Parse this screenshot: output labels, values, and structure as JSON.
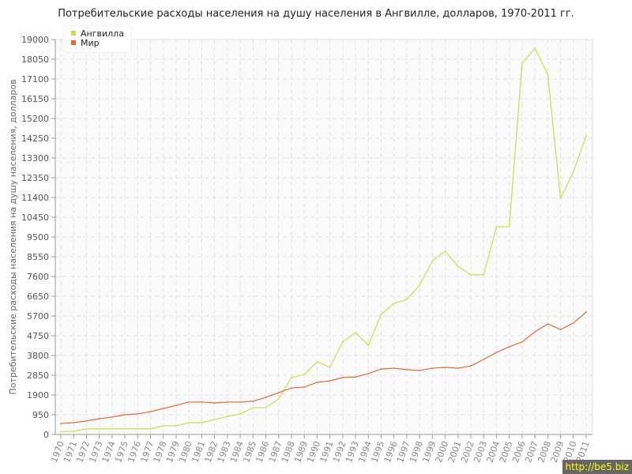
{
  "chart_data": {
    "type": "line",
    "title": "Потребительские расходы населения на душу населения в Ангвилле, долларов, 1970-2011 гг.",
    "ylabel": "Потребительские расходы населения на душу населения, долларов",
    "xlabel": "",
    "ylim": [
      0,
      19000
    ],
    "yticks": [
      0,
      950,
      1900,
      2850,
      3800,
      4750,
      5700,
      6650,
      7600,
      8550,
      9500,
      10450,
      11400,
      12350,
      13300,
      14250,
      15200,
      16150,
      17100,
      18050,
      19000
    ],
    "x": [
      1970,
      1971,
      1972,
      1973,
      1974,
      1975,
      1976,
      1977,
      1978,
      1979,
      1980,
      1981,
      1982,
      1983,
      1984,
      1985,
      1986,
      1987,
      1988,
      1989,
      1990,
      1991,
      1992,
      1993,
      1994,
      1995,
      1996,
      1997,
      1998,
      1999,
      2000,
      2001,
      2002,
      2003,
      2004,
      2005,
      2006,
      2007,
      2008,
      2009,
      2010,
      2011
    ],
    "grid": true,
    "legend_position": "top-left",
    "series": [
      {
        "name": "Ангвилла",
        "color": "#c5e04a",
        "values": [
          150,
          150,
          270,
          270,
          270,
          270,
          270,
          270,
          420,
          420,
          570,
          570,
          720,
          870,
          990,
          1290,
          1290,
          1710,
          2740,
          2890,
          3500,
          3230,
          4450,
          4900,
          4290,
          5780,
          6310,
          6500,
          7180,
          8360,
          8820,
          8090,
          7680,
          7680,
          9990,
          10000,
          17860,
          18580,
          17330,
          11360,
          12620,
          14360
        ]
      },
      {
        "name": "Мир",
        "color": "#e8693a",
        "values": [
          530,
          570,
          650,
          760,
          840,
          950,
          990,
          1100,
          1250,
          1400,
          1560,
          1560,
          1520,
          1560,
          1560,
          1600,
          1790,
          2010,
          2240,
          2280,
          2510,
          2580,
          2740,
          2770,
          2930,
          3150,
          3190,
          3120,
          3080,
          3190,
          3230,
          3190,
          3300,
          3610,
          3950,
          4220,
          4450,
          4940,
          5320,
          5050,
          5360,
          5890
        ]
      }
    ]
  },
  "watermark": "http://be5.biz"
}
